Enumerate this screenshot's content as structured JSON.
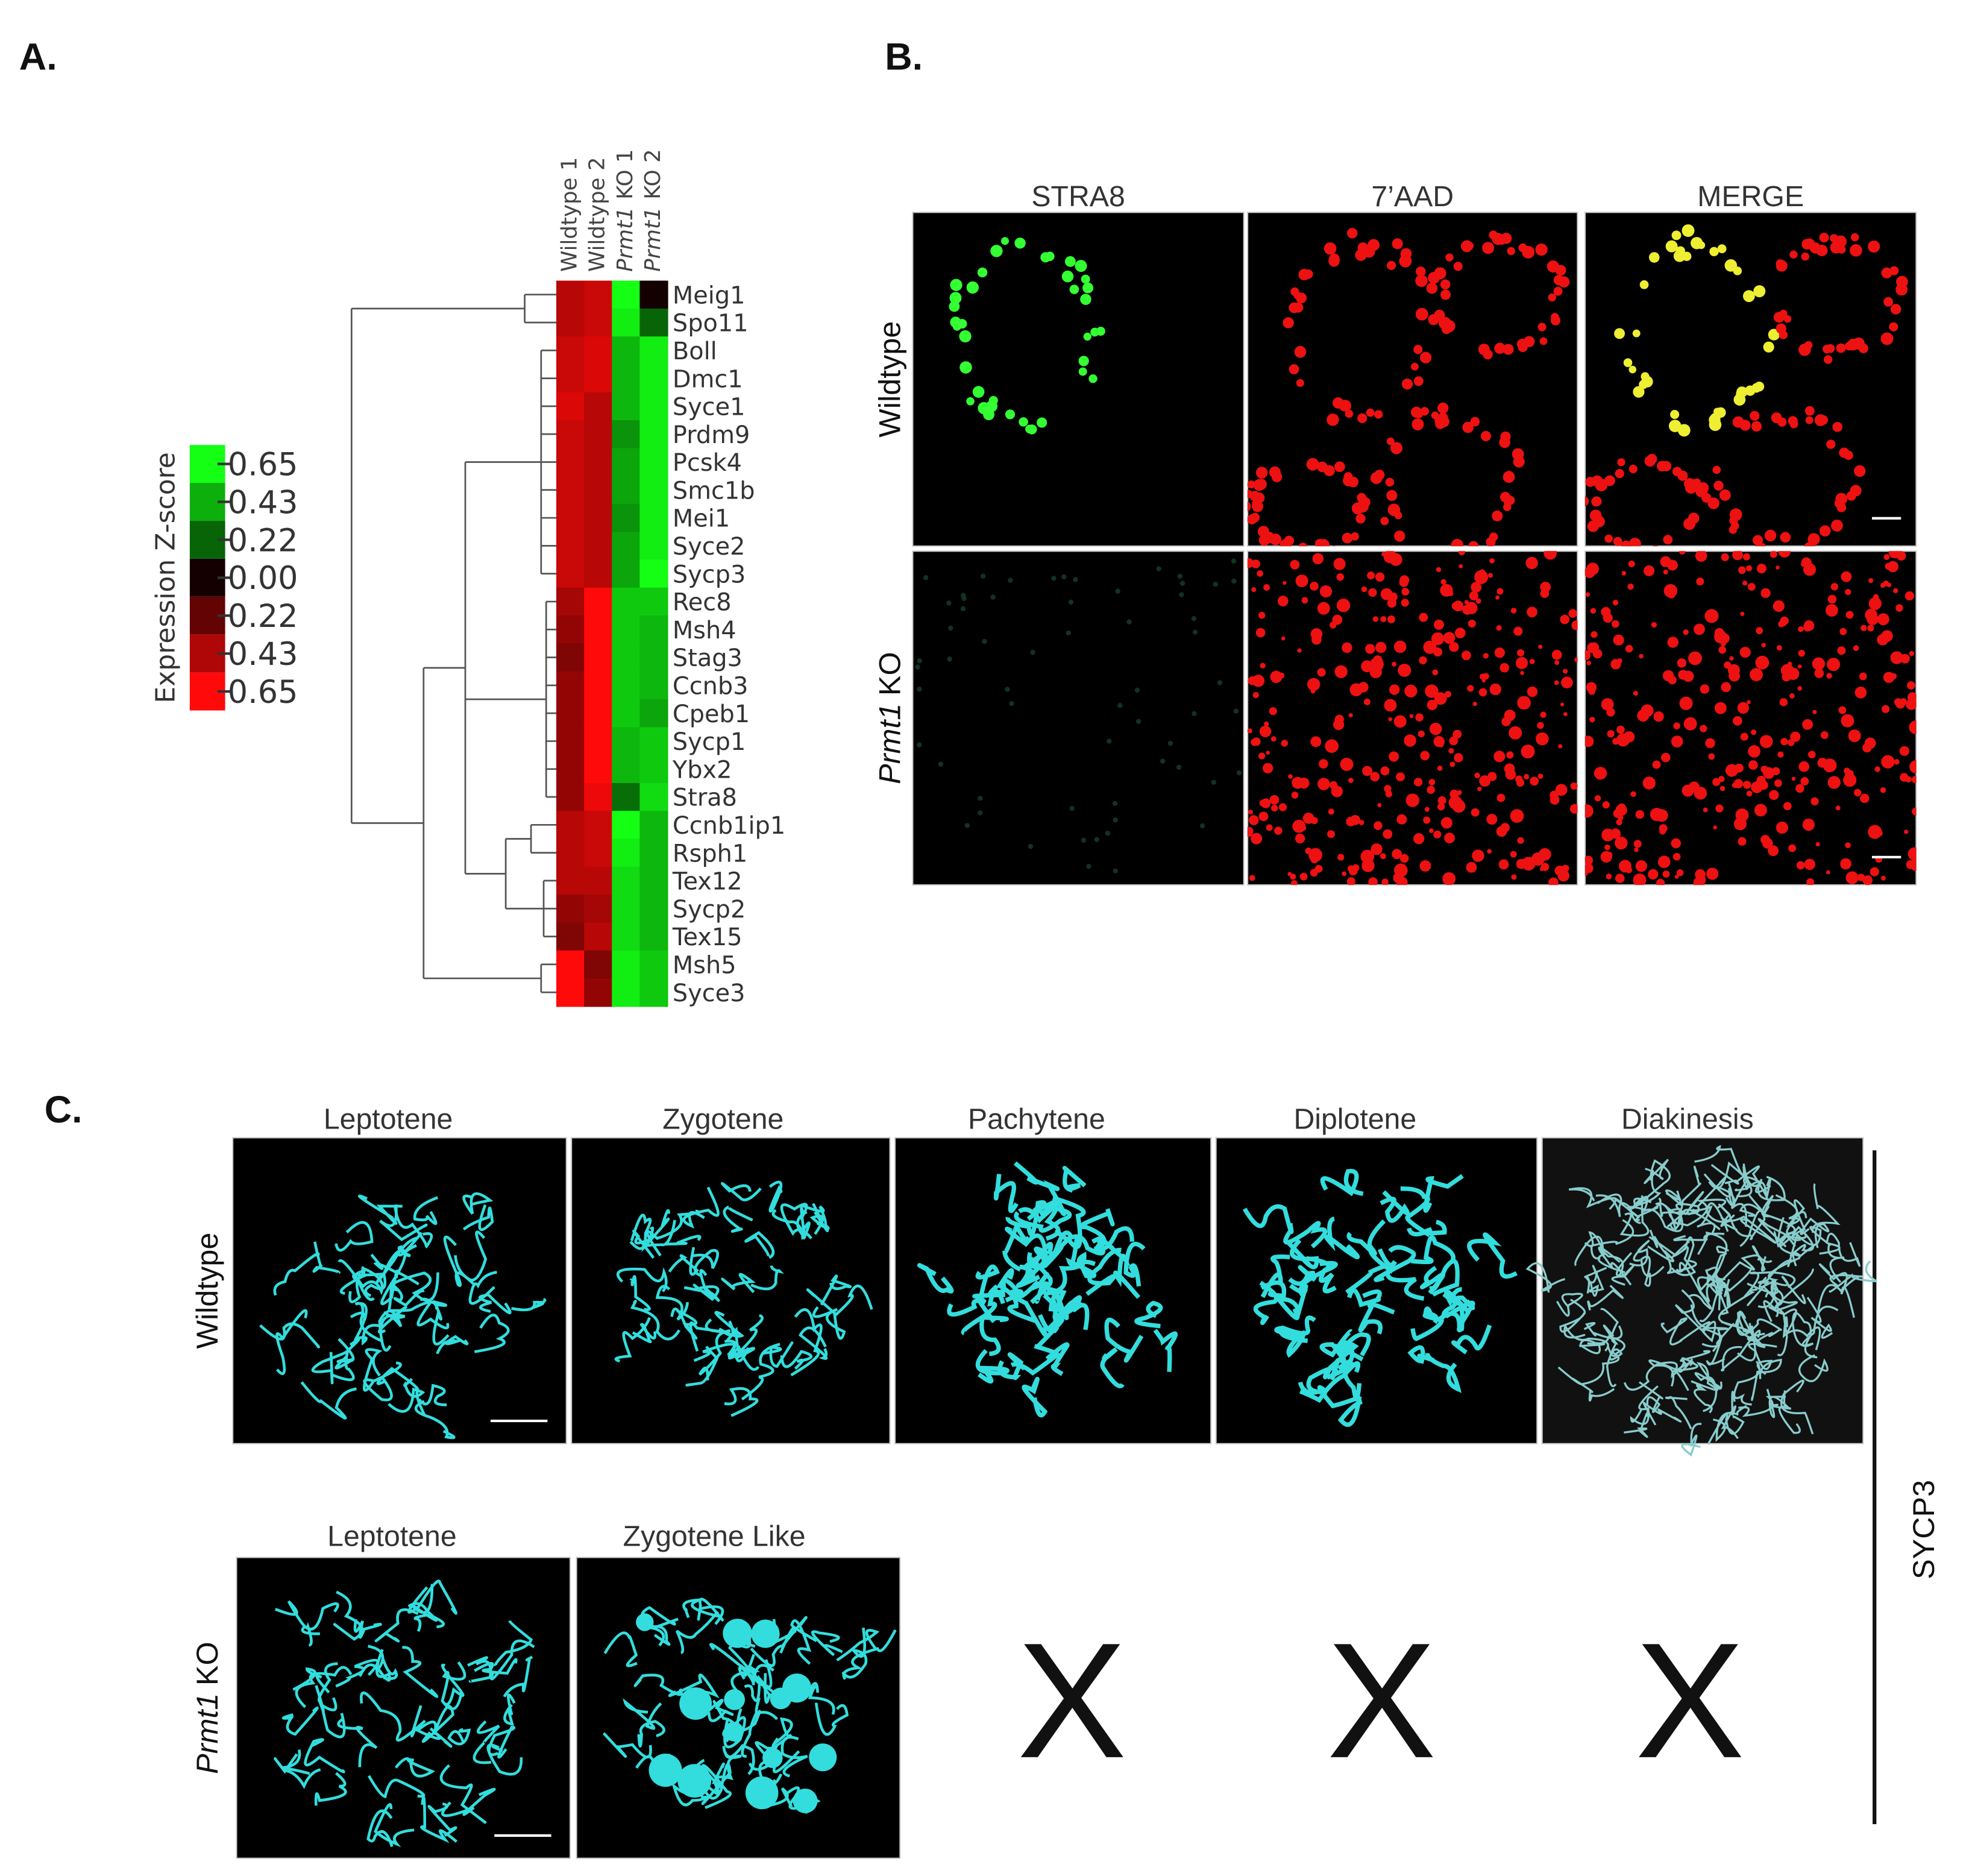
{
  "panel_a": {
    "label": "A.",
    "legend": {
      "title": "Expression Z-score",
      "ticks": [
        {
          "value": -0.65,
          "label": "0.65"
        },
        {
          "value": -0.43,
          "label": "0.43"
        },
        {
          "value": -0.22,
          "label": "0.22"
        },
        {
          "value": 0,
          "label": "0.00"
        },
        0.22,
        0.43,
        0.65
      ]
    },
    "heatmap": {
      "columns": [
        {
          "text": "Wildtype 1"
        },
        {
          "text": "Wildtype 2"
        },
        {
          "italic": "Prmt1",
          "text": "KO 1"
        },
        {
          "italic": "Prmt1",
          "text": "KO 2"
        }
      ],
      "genes": [
        "Meig1",
        "Spo11",
        "Boll",
        "Dmc1",
        "Syce1",
        "Prdm9",
        "Pcsk4",
        "Smc1b",
        "Mei1",
        "Syce2",
        "Sycp3",
        "Rec8",
        "Msh4",
        "Stag3",
        "Ccnb3",
        "Cpeb1",
        "Sycp1",
        "Ybx2",
        "Stra8",
        "Ccnb1ip1",
        "Rsph1",
        "Tex12",
        "Sycp2",
        "Tex15",
        "Msh5",
        "Syce3"
      ],
      "values": [
        [
          0.45,
          0.5,
          -0.65,
          0
        ],
        [
          0.45,
          0.5,
          -0.6,
          -0.22
        ],
        [
          0.5,
          0.55,
          -0.45,
          -0.6
        ],
        [
          0.5,
          0.55,
          -0.45,
          -0.6
        ],
        [
          0.55,
          0.45,
          -0.45,
          -0.6
        ],
        [
          0.5,
          0.45,
          -0.35,
          -0.6
        ],
        [
          0.5,
          0.45,
          -0.4,
          -0.6
        ],
        [
          0.5,
          0.45,
          -0.4,
          -0.6
        ],
        [
          0.5,
          0.45,
          -0.35,
          -0.6
        ],
        [
          0.5,
          0.45,
          -0.4,
          -0.6
        ],
        [
          0.5,
          0.45,
          -0.4,
          -0.65
        ],
        [
          0.4,
          0.65,
          -0.5,
          -0.5
        ],
        [
          0.35,
          0.65,
          -0.5,
          -0.45
        ],
        [
          0.3,
          0.65,
          -0.5,
          -0.45
        ],
        [
          0.35,
          0.65,
          -0.5,
          -0.45
        ],
        [
          0.35,
          0.65,
          -0.5,
          -0.4
        ],
        [
          0.35,
          0.65,
          -0.45,
          -0.5
        ],
        [
          0.35,
          0.65,
          -0.45,
          -0.5
        ],
        [
          0.35,
          0.6,
          -0.25,
          -0.55
        ],
        [
          0.45,
          0.5,
          -0.65,
          -0.45
        ],
        [
          0.45,
          0.5,
          -0.6,
          -0.45
        ],
        [
          0.45,
          0.45,
          -0.55,
          -0.45
        ],
        [
          0.35,
          0.4,
          -0.55,
          -0.45
        ],
        [
          0.3,
          0.45,
          -0.55,
          -0.45
        ],
        [
          0.65,
          0.3,
          -0.6,
          -0.5
        ],
        [
          0.65,
          0.35,
          -0.6,
          -0.5
        ]
      ]
    }
  },
  "panel_b": {
    "label": "B.",
    "columns": [
      "STRA8",
      "7’AAD",
      "MERGE"
    ],
    "rows": [
      {
        "text": "Wildtype"
      },
      {
        "italic": "Prmt1",
        "text": "KO"
      }
    ]
  },
  "panel_c": {
    "label": "C.",
    "marker": "SYCP3",
    "rows": [
      {
        "label": {
          "text": "Wildtype"
        },
        "stages": [
          "Leptotene",
          "Zygotene",
          "Pachytene",
          "Diplotene",
          "Diakinesis"
        ]
      },
      {
        "label": {
          "italic": "Prmt1",
          "text": "KO"
        },
        "stages": [
          "Leptotene",
          "Zygotene Like"
        ],
        "absent": [
          "X",
          "X",
          "X"
        ]
      }
    ]
  }
}
